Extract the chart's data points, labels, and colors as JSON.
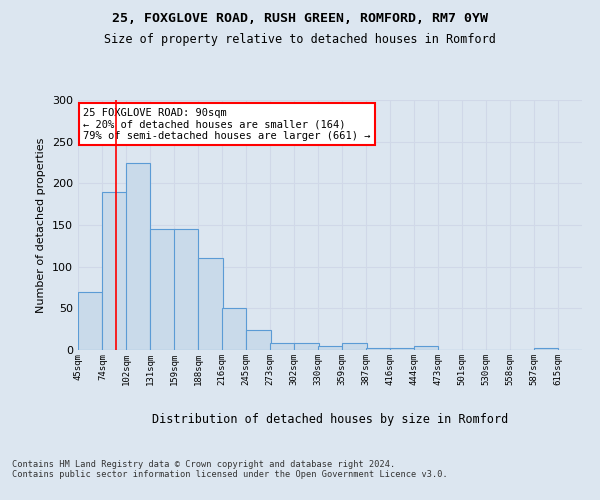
{
  "title_line1": "25, FOXGLOVE ROAD, RUSH GREEN, ROMFORD, RM7 0YW",
  "title_line2": "Size of property relative to detached houses in Romford",
  "xlabel": "Distribution of detached houses by size in Romford",
  "ylabel": "Number of detached properties",
  "bar_color": "#c9daea",
  "bar_edge_color": "#5b9bd5",
  "annotation_box_text": "25 FOXGLOVE ROAD: 90sqm\n← 20% of detached houses are smaller (164)\n79% of semi-detached houses are larger (661) →",
  "annotation_box_color": "white",
  "annotation_box_edge_color": "red",
  "vline_x": 90,
  "vline_color": "red",
  "footer_text": "Contains HM Land Registry data © Crown copyright and database right 2024.\nContains public sector information licensed under the Open Government Licence v3.0.",
  "categories": [
    "45sqm",
    "74sqm",
    "102sqm",
    "131sqm",
    "159sqm",
    "188sqm",
    "216sqm",
    "245sqm",
    "273sqm",
    "302sqm",
    "330sqm",
    "359sqm",
    "387sqm",
    "416sqm",
    "444sqm",
    "473sqm",
    "501sqm",
    "530sqm",
    "558sqm",
    "587sqm",
    "615sqm"
  ],
  "bin_edges": [
    45,
    74,
    102,
    131,
    159,
    188,
    216,
    245,
    273,
    302,
    330,
    359,
    387,
    416,
    444,
    473,
    501,
    530,
    558,
    587,
    615
  ],
  "bar_heights": [
    70,
    190,
    225,
    145,
    145,
    110,
    50,
    24,
    8,
    8,
    5,
    8,
    3,
    3,
    5,
    0,
    0,
    0,
    0,
    3,
    0
  ],
  "ylim": [
    0,
    300
  ],
  "grid_color": "#d0d8e8",
  "background_color": "#dce6f0",
  "plot_bg_color": "#dce6f0"
}
